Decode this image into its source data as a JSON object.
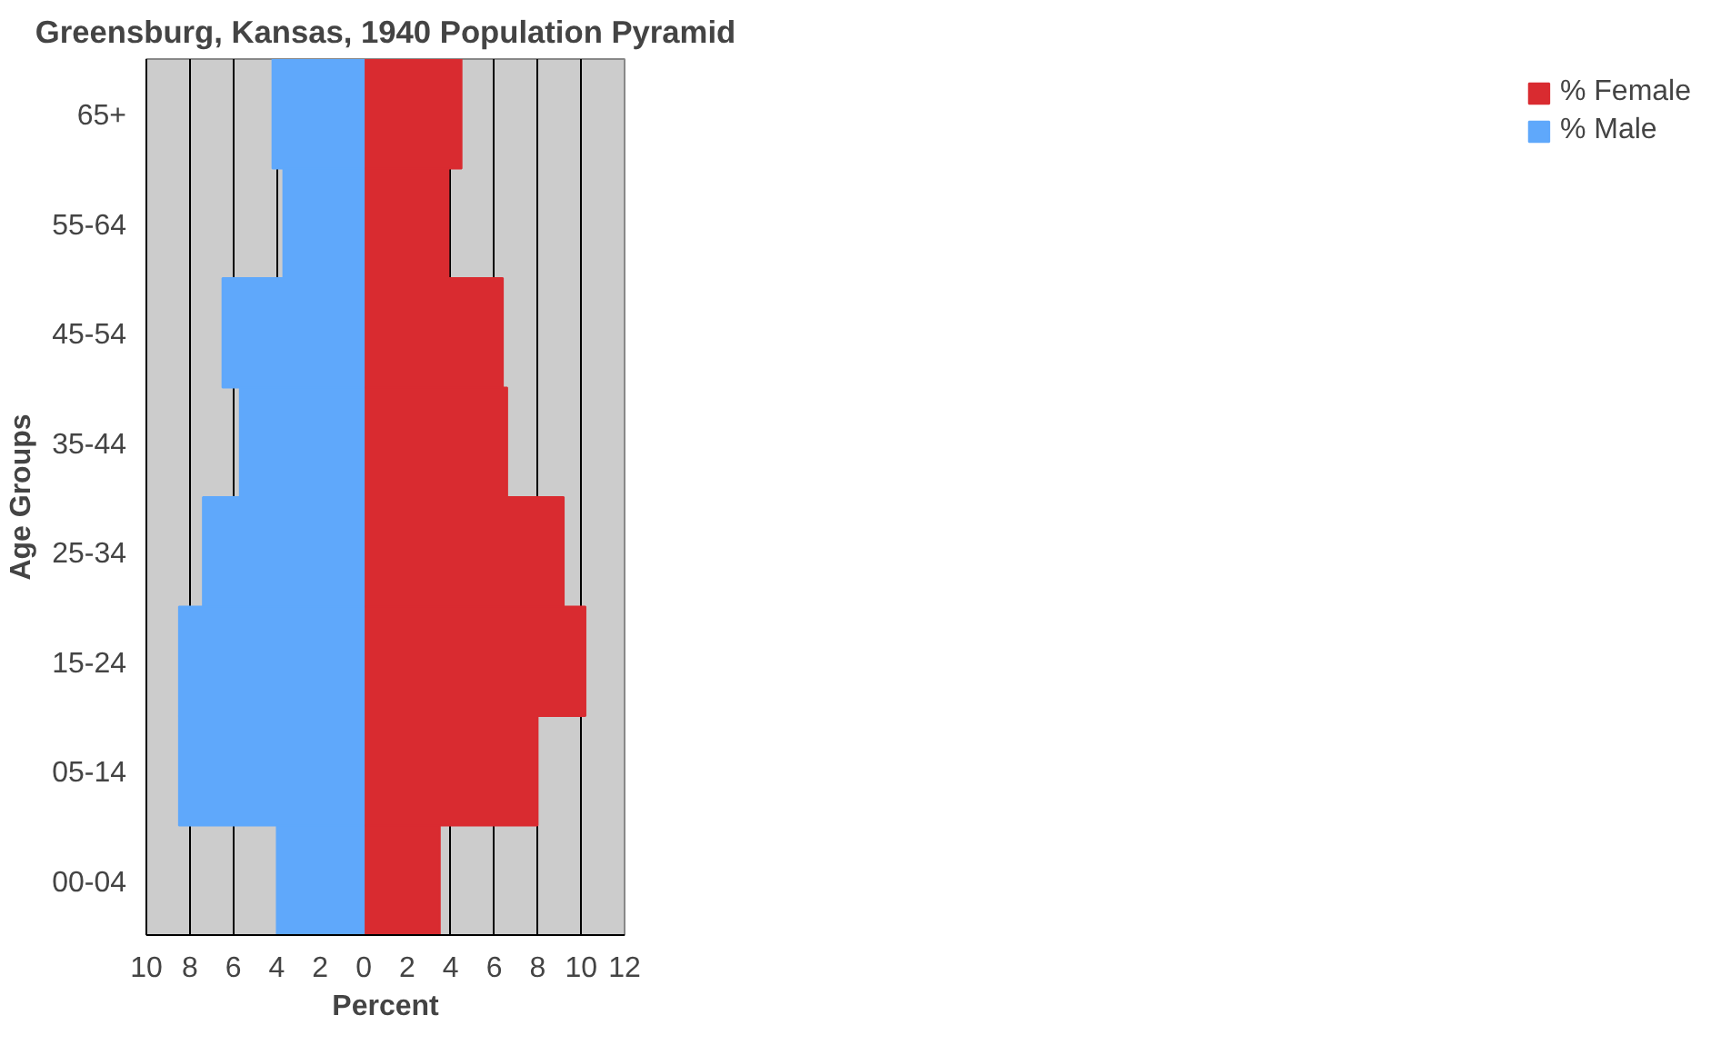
{
  "chart_data": {
    "type": "bar",
    "orientation": "horizontal",
    "stacked": true,
    "title": "Greensburg, Kansas, 1940 Population Pyramid",
    "xlabel": "Percent",
    "ylabel": "Age Groups",
    "categories": [
      "65+",
      "55-64",
      "45-54",
      "35-44",
      "25-34",
      "15-24",
      "05-14",
      "00-04"
    ],
    "series": [
      {
        "name": "% Female",
        "color": "#d92b30",
        "values": [
          4.5,
          3.9,
          6.4,
          6.6,
          9.2,
          10.2,
          8.0,
          3.5
        ]
      },
      {
        "name": "% Male",
        "color": "#5fa8fb",
        "values": [
          -4.2,
          -3.7,
          -6.5,
          -5.7,
          -7.4,
          -8.5,
          -8.5,
          -4.0
        ]
      }
    ],
    "xlim": [
      -10,
      12
    ],
    "xticks": [
      {
        "value": -10,
        "label": "10"
      },
      {
        "value": -8,
        "label": "8"
      },
      {
        "value": -6,
        "label": "6"
      },
      {
        "value": -4,
        "label": "4"
      },
      {
        "value": -2,
        "label": "2"
      },
      0,
      2,
      4,
      6,
      8,
      10,
      12
    ],
    "grid": "x",
    "legend": "right"
  }
}
